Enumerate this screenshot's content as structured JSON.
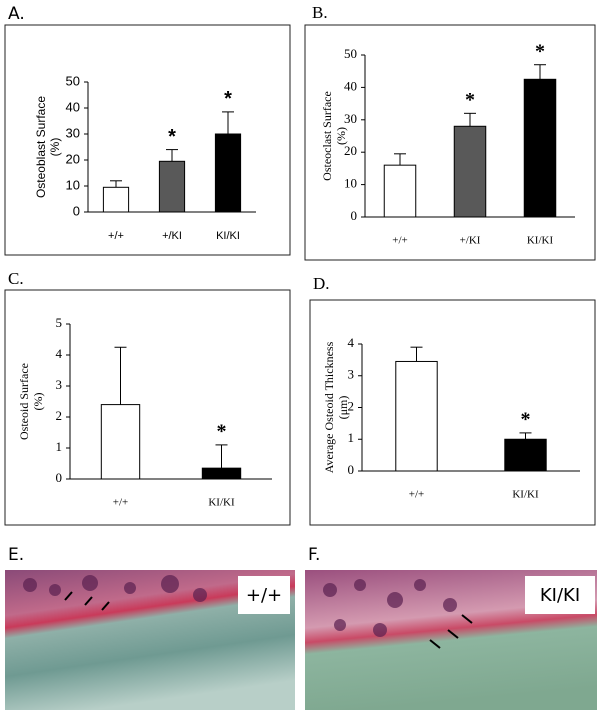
{
  "chart_data": [
    {
      "type": "bar",
      "panel": "A.",
      "y_label": [
        "Osteoblast Surface",
        "(%)"
      ],
      "categories": [
        "+/+",
        "+/KI",
        "KI/KI"
      ],
      "values": [
        9.5,
        19.5,
        30
      ],
      "errors": [
        2.5,
        4.5,
        8.5
      ],
      "colors": [
        "#ffffff",
        "#595959",
        "#000000"
      ],
      "ylim": [
        0,
        50
      ],
      "yticks": [
        0,
        10,
        20,
        30,
        40,
        50
      ],
      "annotations": [
        {
          "index": 1,
          "text": "*"
        },
        {
          "index": 2,
          "text": "*"
        }
      ]
    },
    {
      "type": "bar",
      "panel": "B.",
      "y_label": [
        "Osteoclast Surface",
        "(%)"
      ],
      "categories": [
        "+/+",
        "+/KI",
        "KI/KI"
      ],
      "values": [
        16,
        28,
        42.5
      ],
      "errors": [
        3.5,
        4,
        4.5
      ],
      "colors": [
        "#ffffff",
        "#595959",
        "#000000"
      ],
      "ylim": [
        0,
        50
      ],
      "yticks": [
        0,
        10,
        20,
        30,
        40,
        50
      ],
      "annotations": [
        {
          "index": 1,
          "text": "*"
        },
        {
          "index": 2,
          "text": "*"
        }
      ]
    },
    {
      "type": "bar",
      "panel": "C.",
      "y_label": [
        "Osteoid Surface",
        "(%)"
      ],
      "categories": [
        "+/+",
        "KI/KI"
      ],
      "values": [
        2.4,
        0.35
      ],
      "errors": [
        1.85,
        0.75
      ],
      "colors": [
        "#ffffff",
        "#000000"
      ],
      "ylim": [
        0,
        5
      ],
      "yticks": [
        0,
        1,
        2,
        3,
        4,
        5
      ],
      "annotations": [
        {
          "index": 1,
          "text": "*"
        }
      ]
    },
    {
      "type": "bar",
      "panel": "D.",
      "y_label": [
        "Average Osteoid Thickness",
        "(μm)"
      ],
      "categories": [
        "+/+",
        "KI/KI"
      ],
      "values": [
        3.45,
        1.0
      ],
      "errors": [
        0.45,
        0.2
      ],
      "colors": [
        "#ffffff",
        "#000000"
      ],
      "ylim": [
        0,
        4
      ],
      "yticks": [
        0,
        1,
        2,
        3,
        4
      ],
      "annotations": [
        {
          "index": 1,
          "text": "*"
        }
      ]
    }
  ],
  "images": [
    {
      "panel": "E.",
      "caption": "+/+"
    },
    {
      "panel": "F.",
      "caption": "KI/KI"
    }
  ]
}
